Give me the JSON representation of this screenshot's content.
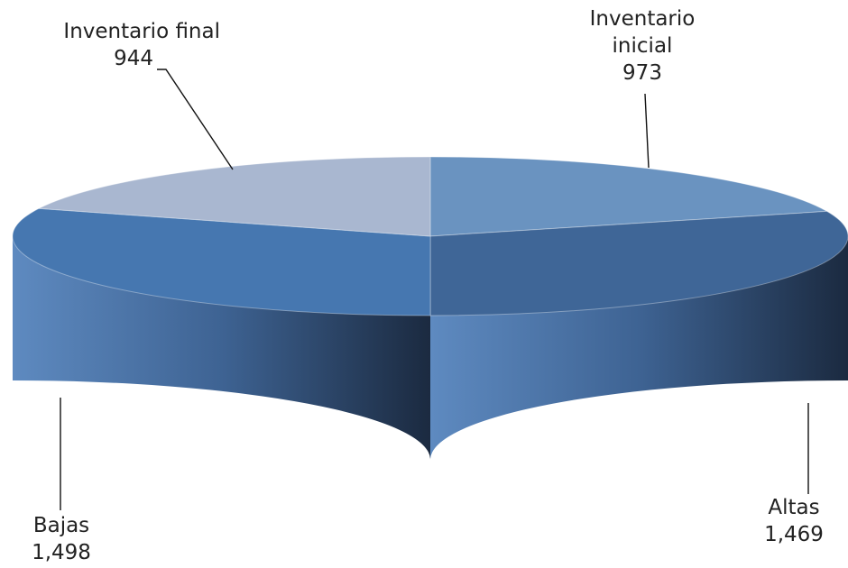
{
  "chart_data": {
    "type": "pie",
    "style": "3d",
    "categories": [
      "Inventario inicial",
      "Altas",
      "Bajas",
      "Inventario final"
    ],
    "values": [
      973,
      1469,
      1498,
      944
    ],
    "value_labels": [
      "973",
      "1,469",
      "1,498",
      "944"
    ],
    "colors": [
      "#6a93c0",
      "#3f6697",
      "#4677b0",
      "#a9b7d0"
    ],
    "side_colors": [
      "#6a93c0",
      "#1f3048",
      "#3a5f90",
      "#a9b7d0"
    ],
    "labels": [
      {
        "name_lines": [
          "Inventario",
          "inicial"
        ],
        "value": "973"
      },
      {
        "name_lines": [
          "Altas"
        ],
        "value": "1,469"
      },
      {
        "name_lines": [
          "Bajas"
        ],
        "value": "1,498"
      },
      {
        "name_lines": [
          "Inventario final"
        ],
        "value": "944"
      }
    ],
    "title": "",
    "legend": "none"
  }
}
